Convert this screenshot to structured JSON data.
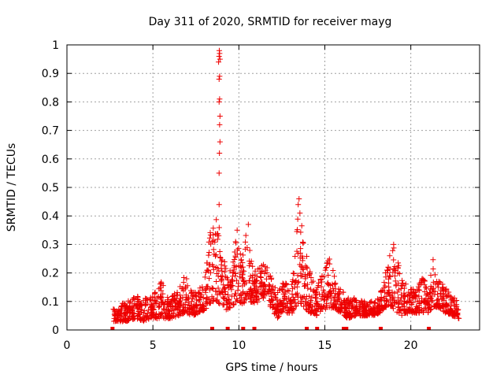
{
  "chart_data": {
    "type": "scatter",
    "title": "Day 311 of 2020, SRMTID for receiver mayg",
    "xlabel": "GPS time / hours",
    "ylabel": "SRMTID / TECUs",
    "xlim": [
      0,
      24
    ],
    "ylim": [
      0,
      1
    ],
    "xticks": [
      0,
      5,
      10,
      15,
      20
    ],
    "xtick_labels": [
      "0",
      "5",
      "10",
      "15",
      "20"
    ],
    "yticks": [
      0,
      0.1,
      0.2,
      0.3,
      0.4,
      0.5,
      0.6,
      0.7,
      0.8,
      0.9,
      1
    ],
    "ytick_labels": [
      "0",
      "0.1",
      "0.2",
      "0.3",
      "0.4",
      "0.5",
      "0.6",
      "0.7",
      "0.8",
      "0.9",
      "1"
    ],
    "grid": true,
    "marker": "plus",
    "color": "#ee0000",
    "zero_markers_x": [
      2.65,
      8.45,
      9.35,
      10.25,
      10.9,
      13.95,
      14.55,
      16.1,
      16.25,
      18.25,
      21.05
    ],
    "series": [
      {
        "name": "SRMTID",
        "envelope": [
          [
            2.7,
            0.03,
            0.08
          ],
          [
            3.0,
            0.03,
            0.09
          ],
          [
            3.5,
            0.03,
            0.1
          ],
          [
            4.0,
            0.04,
            0.12
          ],
          [
            4.5,
            0.03,
            0.11
          ],
          [
            5.0,
            0.04,
            0.12
          ],
          [
            5.5,
            0.04,
            0.17
          ],
          [
            6.0,
            0.04,
            0.11
          ],
          [
            6.5,
            0.05,
            0.15
          ],
          [
            6.9,
            0.06,
            0.2
          ],
          [
            7.3,
            0.05,
            0.13
          ],
          [
            7.7,
            0.06,
            0.15
          ],
          [
            8.0,
            0.07,
            0.16
          ],
          [
            8.2,
            0.08,
            0.33
          ],
          [
            8.4,
            0.1,
            0.35
          ],
          [
            8.6,
            0.1,
            0.38
          ],
          [
            8.75,
            0.1,
            0.44
          ],
          [
            9.0,
            0.08,
            0.3
          ],
          [
            9.3,
            0.07,
            0.2
          ],
          [
            9.6,
            0.08,
            0.25
          ],
          [
            9.9,
            0.1,
            0.35
          ],
          [
            10.2,
            0.09,
            0.25
          ],
          [
            10.5,
            0.1,
            0.37
          ],
          [
            10.8,
            0.09,
            0.22
          ],
          [
            11.2,
            0.1,
            0.22
          ],
          [
            11.6,
            0.12,
            0.25
          ],
          [
            12.0,
            0.05,
            0.16
          ],
          [
            12.3,
            0.04,
            0.13
          ],
          [
            12.6,
            0.07,
            0.18
          ],
          [
            13.0,
            0.05,
            0.14
          ],
          [
            13.3,
            0.08,
            0.3
          ],
          [
            13.5,
            0.1,
            0.45
          ],
          [
            13.8,
            0.08,
            0.3
          ],
          [
            14.1,
            0.06,
            0.22
          ],
          [
            14.5,
            0.05,
            0.15
          ],
          [
            14.9,
            0.07,
            0.2
          ],
          [
            15.3,
            0.08,
            0.28
          ],
          [
            15.6,
            0.07,
            0.18
          ],
          [
            16.0,
            0.06,
            0.15
          ],
          [
            16.3,
            0.04,
            0.12
          ],
          [
            16.8,
            0.05,
            0.11
          ],
          [
            17.3,
            0.05,
            0.1
          ],
          [
            17.8,
            0.05,
            0.1
          ],
          [
            18.2,
            0.06,
            0.12
          ],
          [
            18.5,
            0.08,
            0.2
          ],
          [
            18.9,
            0.08,
            0.3
          ],
          [
            19.2,
            0.06,
            0.3
          ],
          [
            19.5,
            0.05,
            0.18
          ],
          [
            19.9,
            0.06,
            0.15
          ],
          [
            20.3,
            0.06,
            0.14
          ],
          [
            20.7,
            0.06,
            0.2
          ],
          [
            21.0,
            0.06,
            0.13
          ],
          [
            21.3,
            0.08,
            0.26
          ],
          [
            21.6,
            0.08,
            0.18
          ],
          [
            22.0,
            0.06,
            0.15
          ],
          [
            22.4,
            0.05,
            0.12
          ],
          [
            22.8,
            0.04,
            0.1
          ]
        ],
        "spikes": [
          [
            8.85,
            0.44
          ],
          [
            8.85,
            0.55
          ],
          [
            8.87,
            0.62
          ],
          [
            8.9,
            0.66
          ],
          [
            8.88,
            0.72
          ],
          [
            8.9,
            0.75
          ],
          [
            8.85,
            0.8
          ],
          [
            8.88,
            0.81
          ],
          [
            8.85,
            0.88
          ],
          [
            8.88,
            0.89
          ],
          [
            8.82,
            0.94
          ],
          [
            8.9,
            0.95
          ],
          [
            8.85,
            0.96
          ],
          [
            8.88,
            0.97
          ],
          [
            8.86,
            0.98
          ],
          [
            13.45,
            0.44
          ],
          [
            13.5,
            0.46
          ],
          [
            13.55,
            0.41
          ],
          [
            10.55,
            0.37
          ],
          [
            9.9,
            0.35
          ],
          [
            19.0,
            0.3
          ]
        ]
      }
    ]
  }
}
